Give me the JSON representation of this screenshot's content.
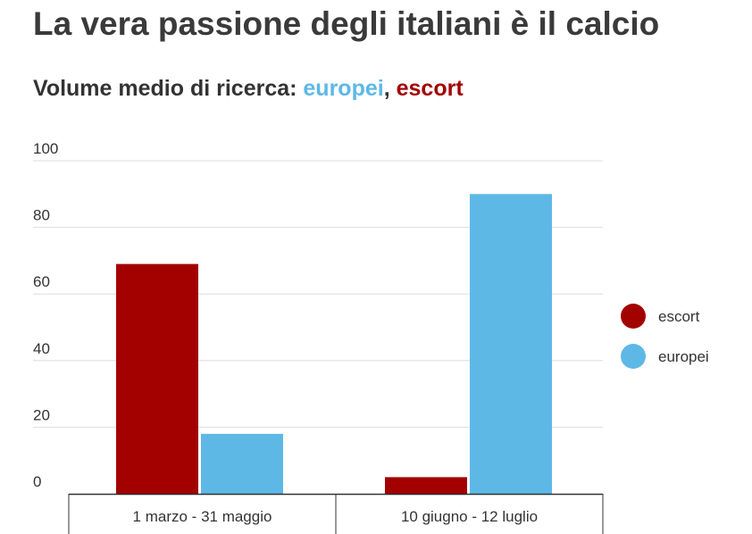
{
  "title": "La vera passione degli italiani è il calcio",
  "subtitle": {
    "prefix": "Volume medio di ricerca: ",
    "kw1": "europei",
    "sep": ", ",
    "kw2": "escort"
  },
  "colors": {
    "escort": "#a30000",
    "europei": "#5db8e6",
    "grid": "#dddddd",
    "axis": "#333333"
  },
  "chart_data": {
    "type": "bar",
    "categories": [
      "1 marzo - 31 maggio",
      "10 giugno - 12 luglio"
    ],
    "series": [
      {
        "name": "escort",
        "values": [
          69,
          5
        ]
      },
      {
        "name": "europei",
        "values": [
          18,
          90
        ]
      }
    ],
    "ylim": [
      0,
      100
    ],
    "yticks": [
      0,
      20,
      40,
      60,
      80,
      100
    ],
    "xlabel": "",
    "ylabel": "",
    "grid": true,
    "legend": "right"
  }
}
